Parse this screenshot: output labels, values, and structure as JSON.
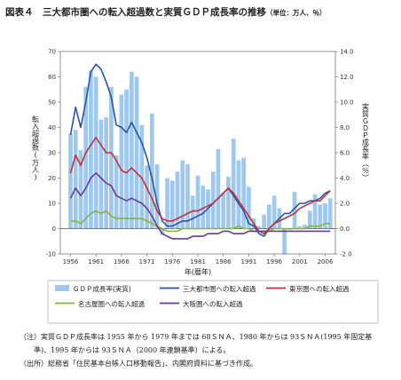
{
  "title": "図表４　三大都市圏への転入超過数と実質ＧＤＰ成長率の推移",
  "title_unit": "（単位：万人、％）",
  "notes": [
    "（注）実質ＧＤＰ成長率は 1955 年から 1979 年までは 68ＳＮＡ、1980 年からは 93ＳＮＡ(1995 年固定基",
    "　　準)、1995 年からは 93ＳＮＡ（2000 年連鎖基準）による。",
    "（出所）総務省「住民基本台帳人口移動報告」、内閣府資料に基づき作成。"
  ],
  "chart_data": {
    "type": "bar+line",
    "xlabel": "年(暦年)",
    "ylabel_left": "転入超過数(万人)",
    "ylabel_right": "実質ＧＤＰ成長率（％）",
    "ylim_left": [
      -10,
      70
    ],
    "ylim_right": [
      -2.0,
      14.0
    ],
    "yticks_left": [
      "-10",
      "0",
      "10",
      "20",
      "30",
      "40",
      "50",
      "60",
      "70"
    ],
    "yticks_right": [
      "-2.0",
      "0.0",
      "2.0",
      "4.0",
      "6.0",
      "8.0",
      "10.0",
      "12.0",
      "14.0"
    ],
    "xticks": [
      "1956",
      "1961",
      "1966",
      "1971",
      "1976",
      "1981",
      "1986",
      "1991",
      "1996",
      "2001",
      "2006"
    ],
    "x_start": 1954,
    "x_end": 2008,
    "grid": false,
    "series": [
      {
        "name": "ＧＤＰ成長率(実質)",
        "kind": "bar",
        "axis": "right",
        "color": "#9fc8ee",
        "x": [
          1956,
          1957,
          1958,
          1959,
          1960,
          1961,
          1962,
          1963,
          1964,
          1965,
          1966,
          1967,
          1968,
          1969,
          1970,
          1971,
          1972,
          1973,
          1974,
          1975,
          1976,
          1977,
          1978,
          1979,
          1980,
          1981,
          1982,
          1983,
          1984,
          1985,
          1986,
          1987,
          1988,
          1989,
          1990,
          1991,
          1992,
          1993,
          1994,
          1995,
          1996,
          1997,
          1998,
          1999,
          2000,
          2001,
          2002,
          2003,
          2004,
          2005,
          2006,
          2007
        ],
        "values": [
          7.5,
          7.8,
          6.2,
          11.2,
          12.5,
          12.0,
          8.6,
          8.8,
          11.2,
          5.8,
          10.6,
          11.0,
          12.4,
          12.0,
          8.2,
          5.0,
          9.1,
          5.1,
          -0.5,
          4.0,
          3.8,
          4.5,
          5.4,
          5.1,
          2.6,
          4.2,
          3.4,
          3.1,
          4.5,
          6.3,
          2.8,
          4.1,
          7.1,
          5.4,
          5.6,
          3.3,
          0.8,
          0.2,
          1.1,
          1.9,
          2.6,
          1.6,
          -2.0,
          -0.1,
          2.9,
          0.2,
          0.3,
          1.4,
          2.7,
          1.9,
          2.0,
          2.4
        ]
      },
      {
        "name": "三大都市圏への転入超過",
        "kind": "line",
        "axis": "left",
        "color": "#2a56a4",
        "x": [
          1956,
          1957,
          1958,
          1959,
          1960,
          1961,
          1962,
          1963,
          1964,
          1965,
          1966,
          1967,
          1968,
          1969,
          1970,
          1971,
          1972,
          1973,
          1974,
          1975,
          1976,
          1977,
          1978,
          1979,
          1980,
          1981,
          1982,
          1983,
          1984,
          1985,
          1986,
          1987,
          1988,
          1989,
          1990,
          1991,
          1992,
          1993,
          1994,
          1995,
          1996,
          1997,
          1998,
          1999,
          2000,
          2001,
          2002,
          2003,
          2004,
          2005,
          2006,
          2007
        ],
        "values": [
          37,
          48,
          40,
          50,
          62,
          65,
          63,
          58,
          52,
          41,
          40,
          38,
          42,
          38,
          34,
          28,
          20,
          10,
          3,
          1,
          1,
          2,
          3,
          3,
          4,
          5,
          6,
          8,
          10,
          12,
          14,
          16,
          13,
          10,
          7,
          2,
          1,
          -2,
          -3,
          0,
          2,
          4,
          6,
          6,
          8,
          10,
          10,
          11,
          11,
          12,
          14,
          15
        ]
      },
      {
        "name": "東京圏への転入超過",
        "kind": "line",
        "axis": "left",
        "color": "#c0303b",
        "x": [
          1956,
          1957,
          1958,
          1959,
          1960,
          1961,
          1962,
          1963,
          1964,
          1965,
          1966,
          1967,
          1968,
          1969,
          1970,
          1971,
          1972,
          1973,
          1974,
          1975,
          1976,
          1977,
          1978,
          1979,
          1980,
          1981,
          1982,
          1983,
          1984,
          1985,
          1986,
          1987,
          1988,
          1989,
          1990,
          1991,
          1992,
          1993,
          1994,
          1995,
          1996,
          1997,
          1998,
          1999,
          2000,
          2001,
          2002,
          2003,
          2004,
          2005,
          2006,
          2007
        ],
        "values": [
          22,
          29,
          25,
          30,
          33,
          36,
          33,
          30,
          30,
          27,
          23,
          22,
          24,
          22,
          20,
          16,
          12,
          7,
          4,
          3,
          3,
          4,
          5,
          6,
          7,
          7,
          8,
          9,
          10,
          12,
          14,
          16,
          14,
          11,
          8,
          5,
          2,
          -1,
          -2,
          0,
          2,
          3,
          4,
          5,
          6,
          8,
          9,
          10,
          11,
          11,
          13,
          15
        ]
      },
      {
        "name": "名古屋圏への転入超過",
        "kind": "line",
        "axis": "left",
        "color": "#8ab339",
        "x": [
          1956,
          1957,
          1958,
          1959,
          1960,
          1961,
          1962,
          1963,
          1964,
          1965,
          1966,
          1967,
          1968,
          1969,
          1970,
          1971,
          1972,
          1973,
          1974,
          1975,
          1976,
          1977,
          1978,
          1979,
          1980,
          1981,
          1982,
          1983,
          1984,
          1985,
          1986,
          1987,
          1988,
          1989,
          1990,
          1991,
          1992,
          1993,
          1994,
          1995,
          1996,
          1997,
          1998,
          1999,
          2000,
          2001,
          2002,
          2003,
          2004,
          2005,
          2006,
          2007
        ],
        "values": [
          3,
          3,
          2,
          4,
          6,
          7,
          6,
          7,
          5,
          4,
          4,
          4,
          4,
          4,
          4,
          3,
          2,
          1,
          0,
          -1,
          -1,
          -1,
          0,
          0,
          0,
          0,
          0,
          0,
          0,
          0,
          0,
          0,
          0,
          1,
          0,
          0,
          -1,
          -1,
          -1,
          -1,
          0,
          0,
          0,
          0,
          0,
          0,
          0,
          1,
          1,
          1,
          2,
          2
        ]
      },
      {
        "name": "大阪圏への転入超過",
        "kind": "line",
        "axis": "left",
        "color": "#6a3d8c",
        "x": [
          1956,
          1957,
          1958,
          1959,
          1960,
          1961,
          1962,
          1963,
          1964,
          1965,
          1966,
          1967,
          1968,
          1969,
          1970,
          1971,
          1972,
          1973,
          1974,
          1975,
          1976,
          1977,
          1978,
          1979,
          1980,
          1981,
          1982,
          1983,
          1984,
          1985,
          1986,
          1987,
          1988,
          1989,
          1990,
          1991,
          1992,
          1993,
          1994,
          1995,
          1996,
          1997,
          1998,
          1999,
          2000,
          2001,
          2002,
          2003,
          2004,
          2005,
          2006,
          2007
        ],
        "values": [
          12,
          16,
          13,
          16,
          20,
          22,
          20,
          18,
          17,
          13,
          12,
          11,
          12,
          11,
          10,
          8,
          5,
          1,
          -2,
          -3,
          -4,
          -4,
          -4,
          -4,
          -3,
          -3,
          -3,
          -2,
          -2,
          -2,
          -1,
          -1,
          -2,
          -2,
          -2,
          -1,
          -1,
          -1,
          -1,
          -1,
          -1,
          -1,
          -1,
          -1,
          -1,
          -1,
          -1,
          -1,
          -1,
          -1,
          -1,
          -1
        ]
      }
    ]
  }
}
